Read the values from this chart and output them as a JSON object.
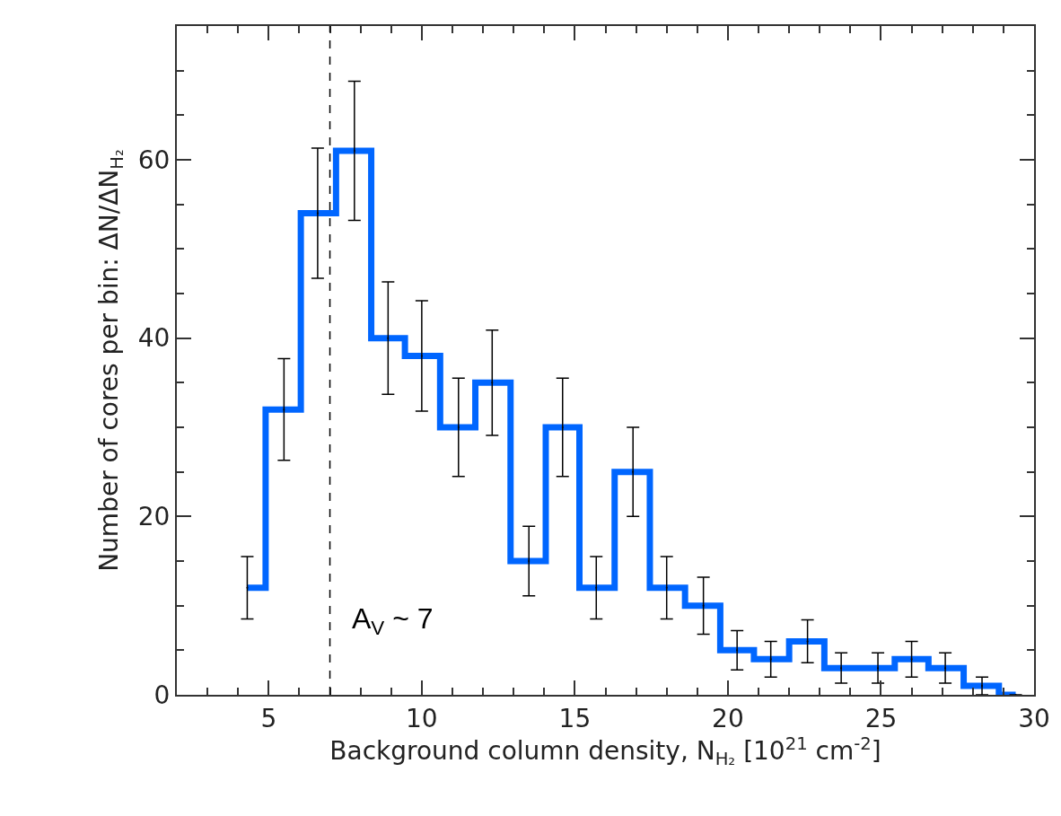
{
  "chart_data": {
    "type": "step",
    "xlabel": "Background column density, N$_{H₂}$ [10$^{21}$ cm$^{-2}$]",
    "ylabel": "Number of cores per bin: ΔN/ΔN$_{H₂}$",
    "x": [
      4.3,
      5.5,
      6.6,
      7.8,
      8.9,
      10.0,
      11.2,
      12.3,
      13.5,
      14.6,
      15.7,
      16.9,
      18.0,
      19.2,
      20.3,
      21.4,
      22.6,
      23.7,
      24.9,
      26.0,
      27.1,
      28.3,
      29.4
    ],
    "values": [
      12,
      32,
      54,
      61,
      40,
      38,
      30,
      35,
      15,
      30,
      12,
      25,
      12,
      10,
      5,
      4,
      6,
      3,
      3,
      4,
      3,
      1,
      0
    ],
    "errors": [
      3.5,
      5.7,
      7.3,
      7.8,
      6.3,
      6.2,
      5.5,
      5.9,
      3.9,
      5.5,
      3.5,
      5,
      3.5,
      3.2,
      2.2,
      2,
      2.4,
      1.7,
      1.7,
      2,
      1.7,
      1,
      0
    ],
    "color": "#0066ff",
    "xlim": [
      2,
      30
    ],
    "ylim": [
      0,
      75
    ],
    "xticks": [
      {
        "value": 2,
        "label": null
      },
      {
        "value": 3,
        "label": null
      },
      {
        "value": 4,
        "label": null
      },
      5,
      {
        "value": 6,
        "label": null
      },
      {
        "value": 7,
        "label": null
      },
      {
        "value": 8,
        "label": null
      },
      {
        "value": 9,
        "label": null
      },
      10,
      {
        "value": 11,
        "label": null
      },
      {
        "value": 12,
        "label": null
      },
      {
        "value": 13,
        "label": null
      },
      {
        "value": 14,
        "label": null
      },
      15,
      {
        "value": 16,
        "label": null
      },
      {
        "value": 17,
        "label": null
      },
      {
        "value": 18,
        "label": null
      },
      {
        "value": 19,
        "label": null
      },
      20,
      {
        "value": 21,
        "label": null
      },
      {
        "value": 22,
        "label": null
      },
      {
        "value": 23,
        "label": null
      },
      {
        "value": 24,
        "label": null
      },
      25,
      {
        "value": 26,
        "label": null
      },
      {
        "value": 27,
        "label": null
      },
      {
        "value": 28,
        "label": null
      },
      {
        "value": 29,
        "label": null
      },
      30
    ],
    "yticks": [
      0,
      {
        "value": 5,
        "label": null
      },
      {
        "value": 10,
        "label": null
      },
      {
        "value": 15,
        "label": null
      },
      20,
      {
        "value": 25,
        "label": null
      },
      {
        "value": 30,
        "label": null
      },
      {
        "value": 35,
        "label": null
      },
      40,
      {
        "value": 45,
        "label": null
      },
      {
        "value": 50,
        "label": null
      },
      {
        "value": 55,
        "label": null
      },
      60,
      {
        "value": 65,
        "label": null
      },
      {
        "value": 70,
        "label": null
      },
      {
        "value": 75,
        "label": null
      }
    ],
    "ref_lines": [
      {
        "axis": "x",
        "value": 7,
        "label": "A$_{V}$ ~ 7",
        "color": "#000000",
        "line_style": "dashed"
      }
    ]
  }
}
